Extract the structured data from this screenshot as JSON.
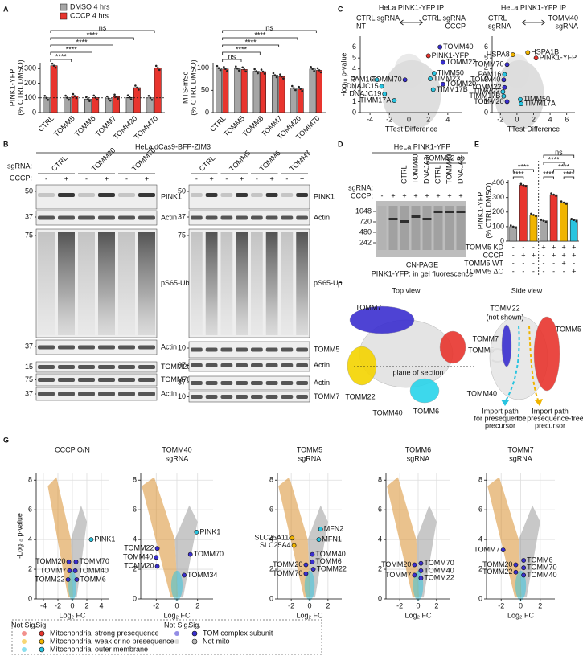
{
  "panel_labels": [
    "A",
    "B",
    "C",
    "D",
    "E",
    "F",
    "G"
  ],
  "chart_data": [
    {
      "type": "bar",
      "ylabel": [
        "PINK1-YFP",
        "(% CTRL DMSO)"
      ],
      "categories": [
        "CTRL",
        "TOMM5",
        "TOMM6",
        "TOMM7",
        "TOMM20",
        "TOMM70"
      ],
      "series": [
        {
          "name": "DMSO 4 hrs",
          "color": "#a6a6a6",
          "values": [
            100,
            101,
            92,
            95,
            103,
            100
          ]
        },
        {
          "name": "CCCP 4 hrs",
          "color": "#e8352e",
          "values": [
            320,
            112,
            102,
            108,
            170,
            305
          ]
        }
      ],
      "ylim": [
        0,
        340
      ],
      "yticks": [
        0,
        100,
        200,
        300
      ],
      "reference": 100,
      "significance": [
        "****",
        "****",
        "****",
        "****",
        "ns"
      ]
    },
    {
      "type": "bar",
      "ylabel": [
        "MTS-mSc",
        "(% CTRL DMSO)"
      ],
      "categories": [
        "CTRL",
        "TOMM5",
        "TOMM6",
        "TOMM7",
        "TOMM20",
        "TOMM70"
      ],
      "series": [
        {
          "color": "#a6a6a6",
          "values": [
            100,
            99,
            93,
            84,
            55,
            98
          ]
        },
        {
          "color": "#e8352e",
          "values": [
            98,
            97,
            92,
            81,
            53,
            95
          ]
        }
      ],
      "ylim": [
        0,
        112
      ],
      "yticks": [
        0,
        50,
        100
      ],
      "reference": 100,
      "significance": [
        "ns",
        "****",
        "****",
        "****",
        "ns"
      ]
    },
    {
      "type": "scatter",
      "title": "HeLa PINK1-YFP IP",
      "left_label": [
        "CTRL sgRNA",
        "NT"
      ],
      "right_label": [
        "CTRL sgRNA",
        "CCCP"
      ],
      "xlabel": "TTest Difference",
      "ylabel": "-log₁₀ p-value",
      "xlim": [
        -5,
        5.5
      ],
      "xticks": [
        -4,
        -2,
        0,
        2,
        4
      ],
      "ylim": [
        0,
        7
      ],
      "yticks": [
        0,
        1,
        2,
        3,
        4,
        5,
        6
      ],
      "grid": false,
      "points": [
        {
          "label": "TOMM40",
          "x": 3.2,
          "y": 6.0,
          "color": "#3a2fd0"
        },
        {
          "label": "PINK1-YFP",
          "x": 2.0,
          "y": 5.2,
          "color": "#e8352e"
        },
        {
          "label": "TOMM22",
          "x": 3.5,
          "y": 4.6,
          "color": "#3a2fd0"
        },
        {
          "label": "TIMM50",
          "x": 2.6,
          "y": 3.6,
          "color": "#29c4e0"
        },
        {
          "label": "TIMM23",
          "x": 2.2,
          "y": 3.1,
          "color": "#29c4e0"
        },
        {
          "label": "TOMM20",
          "x": 3.5,
          "y": 2.6,
          "color": "#3a2fd0"
        },
        {
          "label": "TIMM17B",
          "x": 2.5,
          "y": 2.1,
          "color": "#29c4e0"
        },
        {
          "label": "TOMM70",
          "x": -0.4,
          "y": 3.0,
          "color": "#3a2fd0"
        },
        {
          "label": "PAM16",
          "x": -3.3,
          "y": 3.0,
          "color": "#29c4e0"
        },
        {
          "label": "DNAJC15",
          "x": -2.8,
          "y": 2.4,
          "color": "#29c4e0"
        },
        {
          "label": "DNAJC19",
          "x": -2.5,
          "y": 1.7,
          "color": "#29c4e0"
        },
        {
          "label": "TIMM17A",
          "x": -1.5,
          "y": 1.1,
          "color": "#29c4e0"
        }
      ]
    },
    {
      "type": "scatter",
      "title": "HeLa PINK1-YFP IP",
      "left_label": [
        "CTRL",
        "sgRNA"
      ],
      "right_label": [
        "TOMM40",
        "sgRNA"
      ],
      "xlabel": "TTest Difference",
      "xlim": [
        -3,
        7
      ],
      "xticks": [
        -2,
        0,
        2,
        4,
        6
      ],
      "ylim": [
        0,
        7
      ],
      "yticks": [
        0,
        1,
        2,
        3,
        4,
        5,
        6
      ],
      "grid": false,
      "points": [
        {
          "label": "HSPA8",
          "x": -0.5,
          "y": 5.3,
          "color": "#f0b400"
        },
        {
          "label": "HSPA1B",
          "x": 1.3,
          "y": 5.5,
          "color": "#f0b400"
        },
        {
          "label": "PINK1-YFP",
          "x": 2.3,
          "y": 5.0,
          "color": "#e8352e"
        },
        {
          "label": "TOMM70",
          "x": -1.2,
          "y": 4.4,
          "color": "#3a2fd0"
        },
        {
          "label": "PAM16",
          "x": -1.5,
          "y": 3.5,
          "color": "#29c4e0"
        },
        {
          "label": "TOMM40",
          "x": -1.6,
          "y": 3.0,
          "color": "#3a2fd0"
        },
        {
          "label": "TOMM22",
          "x": -1.5,
          "y": 2.3,
          "color": "#3a2fd0"
        },
        {
          "label": "TIMM23",
          "x": -1.7,
          "y": 1.9,
          "color": "#29c4e0"
        },
        {
          "label": "TIMM17B",
          "x": -1.6,
          "y": 1.5,
          "color": "#29c4e0"
        },
        {
          "label": "TOMM20",
          "x": -1.2,
          "y": 1.0,
          "color": "#3a2fd0"
        },
        {
          "label": "TIMM50",
          "x": 0.4,
          "y": 1.2,
          "color": "#29c4e0"
        },
        {
          "label": "TIMM17A",
          "x": 0.5,
          "y": 0.8,
          "color": "#29c4e0"
        }
      ]
    },
    {
      "type": "bar",
      "ylabel": [
        "PINK1-YFP",
        "(% CTRL DMSO)"
      ],
      "values": [
        100,
        385,
        180,
        140,
        320,
        265,
        145
      ],
      "colors": [
        "#a6a6a6",
        "#e8352e",
        "#f0b400",
        "#a6a6a6",
        "#e8352e",
        "#f0b400",
        "#29c4e0"
      ],
      "ylim": [
        0,
        420
      ],
      "yticks": [
        0,
        100,
        200,
        300,
        400
      ],
      "significance": [
        "****",
        "****",
        "ns",
        "****",
        "****",
        "****",
        "****"
      ],
      "conditions": [
        {
          "label": "TOMM5 KD",
          "cells": [
            "-",
            "-",
            "-",
            "+",
            "+",
            "+",
            "+"
          ]
        },
        {
          "label": "CCCP",
          "cells": [
            "-",
            "+",
            "+",
            "-",
            "+",
            "+",
            "+"
          ]
        },
        {
          "label": "TOMM5 WT",
          "cells": [
            "-",
            "-",
            "-",
            "-",
            "-",
            "+",
            "-"
          ]
        },
        {
          "label": "TOMM5 ΔC",
          "cells": [
            "-",
            "-",
            "-",
            "-",
            "-",
            "-",
            "+"
          ]
        }
      ]
    },
    {
      "type": "scatter",
      "title": [
        "CCCP O/N"
      ],
      "title_color": "#111",
      "xlabel": "Log₂ FC",
      "ylabel": "-Log₁₀ p-value",
      "xlim": [
        -5,
        5
      ],
      "xticks": [
        -4,
        -2,
        0,
        2,
        4
      ],
      "ylim": [
        0,
        8.5
      ],
      "yticks": [
        0,
        2,
        4,
        6,
        8
      ],
      "grid": true,
      "points": [
        {
          "label": "PINK1",
          "x": 2.6,
          "y": 4.0,
          "color": "#29c4e0"
        },
        {
          "label": "TOMM20",
          "x": -0.5,
          "y": 2.5,
          "color": "#3a2fd0"
        },
        {
          "label": "TOMM7",
          "x": -0.4,
          "y": 1.9,
          "color": "#3a2fd0"
        },
        {
          "label": "TOMM22",
          "x": -0.6,
          "y": 1.3,
          "color": "#3a2fd0"
        },
        {
          "label": "TOMM70",
          "x": 0.5,
          "y": 2.5,
          "color": "#3a2fd0"
        },
        {
          "label": "TOMM40",
          "x": 0.4,
          "y": 1.9,
          "color": "#3a2fd0"
        },
        {
          "label": "TOMM6",
          "x": 0.6,
          "y": 1.3,
          "color": "#3a2fd0"
        }
      ]
    },
    {
      "type": "scatter",
      "title": [
        "TOMM40",
        "sgRNA"
      ],
      "title_color": "#999999",
      "xlabel": "Log₂ FC",
      "xlim": [
        -3.5,
        3.5
      ],
      "xticks": [
        -2,
        0,
        2
      ],
      "ylim": [
        0,
        8.5
      ],
      "yticks": [
        0,
        2,
        4,
        6,
        8
      ],
      "grid": true,
      "points": [
        {
          "label": "PINK1",
          "x": 1.9,
          "y": 4.5,
          "color": "#29c4e0"
        },
        {
          "label": "TOMM70",
          "x": 1.3,
          "y": 3.0,
          "color": "#3a2fd0"
        },
        {
          "label": "TOMM34",
          "x": 0.7,
          "y": 1.6,
          "color": "#3a2fd0"
        },
        {
          "label": "TOMM22",
          "x": -1.9,
          "y": 3.4,
          "color": "#3a2fd0"
        },
        {
          "label": "TOMM40",
          "x": -2.0,
          "y": 2.8,
          "color": "#3a2fd0"
        },
        {
          "label": "TOMM20",
          "x": -1.9,
          "y": 2.2,
          "color": "#3a2fd0"
        }
      ]
    },
    {
      "type": "scatter",
      "title": [
        "TOMM5",
        "sgRNA"
      ],
      "title_color": "#e8352e",
      "xlabel": "Log₂ FC",
      "xlim": [
        -3.5,
        3.5
      ],
      "xticks": [
        -2,
        0,
        2
      ],
      "ylim": [
        0,
        8.5
      ],
      "yticks": [
        0,
        2,
        4,
        6,
        8
      ],
      "grid": true,
      "points": [
        {
          "label": "SLC25A11",
          "x": -1.9,
          "y": 4.1,
          "color": "#f0b400"
        },
        {
          "label": "SLC25A4",
          "x": -1.7,
          "y": 3.6,
          "color": "#f0b400"
        },
        {
          "label": "MFN2",
          "x": 1.2,
          "y": 4.7,
          "color": "#29c4e0"
        },
        {
          "label": "MFN1",
          "x": 1.0,
          "y": 4.0,
          "color": "#29c4e0"
        },
        {
          "label": "TOMM40",
          "x": 0.3,
          "y": 3.0,
          "color": "#3a2fd0"
        },
        {
          "label": "TOMM6",
          "x": 0.3,
          "y": 2.5,
          "color": "#3a2fd0"
        },
        {
          "label": "TOMM22",
          "x": 0.4,
          "y": 2.0,
          "color": "#3a2fd0"
        },
        {
          "label": "TOMM20",
          "x": -0.4,
          "y": 2.3,
          "color": "#3a2fd0"
        },
        {
          "label": "TOMM70",
          "x": -0.4,
          "y": 1.7,
          "color": "#3a2fd0"
        }
      ]
    },
    {
      "type": "scatter",
      "title": [
        "TOMM6",
        "sgRNA"
      ],
      "title_color": "#29c4e0",
      "xlabel": "Log₂ FC",
      "xlim": [
        -3.5,
        3.5
      ],
      "xticks": [
        -2,
        0,
        2
      ],
      "ylim": [
        0,
        8.5
      ],
      "yticks": [
        0,
        2,
        4,
        6,
        8
      ],
      "grid": true,
      "points": [
        {
          "label": "TOMM20",
          "x": -0.4,
          "y": 2.3,
          "color": "#3a2fd0"
        },
        {
          "label": "TOMM7",
          "x": -0.4,
          "y": 1.6,
          "color": "#3a2fd0"
        },
        {
          "label": "TOMM70",
          "x": 0.3,
          "y": 2.4,
          "color": "#3a2fd0"
        },
        {
          "label": "TOMM40",
          "x": 0.3,
          "y": 1.9,
          "color": "#3a2fd0"
        },
        {
          "label": "TOMM22",
          "x": 0.3,
          "y": 1.4,
          "color": "#3a2fd0"
        }
      ]
    },
    {
      "type": "scatter",
      "title": [
        "TOMM7",
        "sgRNA"
      ],
      "title_color": "#3a2fd0",
      "xlabel": "Log₂ FC",
      "xlim": [
        -3.5,
        3.5
      ],
      "xticks": [
        -2,
        0,
        2
      ],
      "ylim": [
        0,
        8.5
      ],
      "yticks": [
        0,
        2,
        4,
        6,
        8
      ],
      "grid": true,
      "points": [
        {
          "label": "TOMM7",
          "x": -1.8,
          "y": 3.3,
          "color": "#3a2fd0"
        },
        {
          "label": "TOMM20",
          "x": -0.5,
          "y": 2.3,
          "color": "#3a2fd0"
        },
        {
          "label": "TOMM22",
          "x": -0.5,
          "y": 1.8,
          "color": "#3a2fd0"
        },
        {
          "label": "TOMM6",
          "x": 0.3,
          "y": 2.6,
          "color": "#3a2fd0"
        },
        {
          "label": "TOMM70",
          "x": 0.3,
          "y": 2.1,
          "color": "#3a2fd0"
        },
        {
          "label": "TOMM40",
          "x": 0.3,
          "y": 1.6,
          "color": "#3a2fd0"
        }
      ]
    }
  ],
  "blots": {
    "title": "HeLa dCas9-BFP-ZIM3",
    "sgrna_label": "sgRNA:",
    "cccp_label": "CCCP:",
    "left": {
      "sgrna": [
        "CTRL",
        "TOMM20",
        "TOMM70"
      ],
      "cccp": [
        "-",
        "+",
        "-",
        "+",
        "-",
        "+"
      ],
      "markers": [
        50,
        37,
        75,
        37,
        15,
        75,
        37
      ],
      "proteins": [
        "PINK1",
        "Actin",
        "pS65-Ub",
        "Actin",
        "TOMM20",
        "TOMM70",
        "Actin"
      ]
    },
    "right": {
      "sgrna": [
        "CTRL",
        "TOMM5",
        "TOMM6",
        "TOMM7"
      ],
      "cccp": [
        "-",
        "+",
        "-",
        "+",
        "-",
        "+",
        "-",
        "+"
      ],
      "markers": [
        50,
        37,
        75,
        10,
        37,
        37,
        10
      ],
      "proteins": [
        "PINK1",
        "Actin",
        "pS65-Ub",
        "TOMM5",
        "Actin",
        "Actin",
        "TOMM7"
      ]
    }
  },
  "gel": {
    "title": "HeLa PINK1-YFP",
    "antibody": "TOMM22 ab",
    "sgrna_label": "sgRNA:",
    "cccp_label": "CCCP:",
    "sgrna": [
      "CTRL",
      "TOMM40",
      "DNAJA3",
      "CTRL",
      "TOMM40",
      "DNAJA3"
    ],
    "cccp": [
      "-",
      "+",
      "+",
      "+",
      "+",
      "+",
      "+",
      "+"
    ],
    "markers": [
      1048,
      720,
      480,
      242
    ],
    "caption": [
      "CN-PAGE",
      "PINK1-YFP: in gel fluorescence"
    ]
  },
  "structure": {
    "top_view": "Top view",
    "side_view": "Side view",
    "top_labels": [
      "TOMM7",
      "TOMM5",
      "TOMM22",
      "TOMM40",
      "TOMM6"
    ],
    "plane": "plane of section",
    "side_labels": [
      "TOMM22",
      "(not shown)",
      "TOMM7",
      "TOMM5",
      "TOMM40"
    ],
    "paths": [
      [
        "Import path",
        "for presequence",
        "precursor"
      ],
      [
        "Import path",
        "for presequence-free",
        "precursor"
      ]
    ]
  },
  "legend": {
    "headers": [
      "Not Sig.",
      "Sig."
    ],
    "items": [
      {
        "label": "Mitochondrial strong presequence",
        "color": "#e8352e"
      },
      {
        "label": "Mitochondrial weak or no presequence",
        "color": "#f0b400"
      },
      {
        "label": "Mitochondrial outer membrane",
        "color": "#29c4e0"
      },
      {
        "label": "TOM complex subunit",
        "color": "#3a2fd0"
      },
      {
        "label": "Not mito",
        "color": "#bbbbbb"
      }
    ]
  }
}
